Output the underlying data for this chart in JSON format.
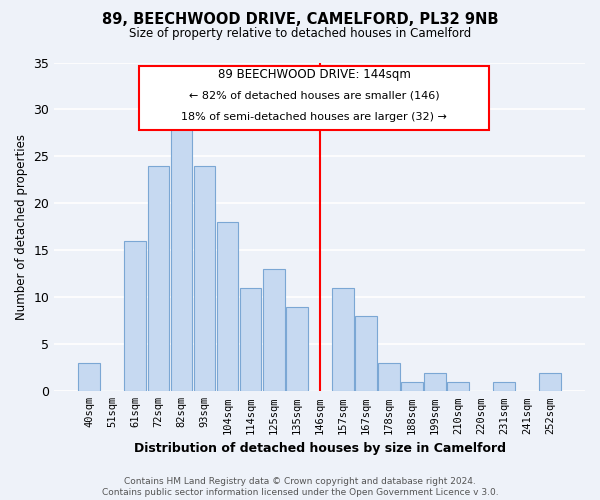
{
  "title": "89, BEECHWOOD DRIVE, CAMELFORD, PL32 9NB",
  "subtitle": "Size of property relative to detached houses in Camelford",
  "xlabel": "Distribution of detached houses by size in Camelford",
  "ylabel": "Number of detached properties",
  "bar_labels": [
    "40sqm",
    "51sqm",
    "61sqm",
    "72sqm",
    "82sqm",
    "93sqm",
    "104sqm",
    "114sqm",
    "125sqm",
    "135sqm",
    "146sqm",
    "157sqm",
    "167sqm",
    "178sqm",
    "188sqm",
    "199sqm",
    "210sqm",
    "220sqm",
    "231sqm",
    "241sqm",
    "252sqm"
  ],
  "bar_values": [
    3,
    0,
    16,
    24,
    28,
    24,
    18,
    11,
    13,
    9,
    0,
    11,
    8,
    3,
    1,
    2,
    1,
    0,
    1,
    0,
    2
  ],
  "bar_color": "#c6d9f1",
  "bar_edgecolor": "#7ba7d4",
  "ylim": [
    0,
    35
  ],
  "yticks": [
    0,
    5,
    10,
    15,
    20,
    25,
    30,
    35
  ],
  "property_line_x": 10.0,
  "annotation_title": "89 BEECHWOOD DRIVE: 144sqm",
  "annotation_line1": "← 82% of detached houses are smaller (146)",
  "annotation_line2": "18% of semi-detached houses are larger (32) →",
  "footer_line1": "Contains HM Land Registry data © Crown copyright and database right 2024.",
  "footer_line2": "Contains public sector information licensed under the Open Government Licence v 3.0.",
  "background_color": "#eef2f9",
  "grid_color": "#ffffff"
}
